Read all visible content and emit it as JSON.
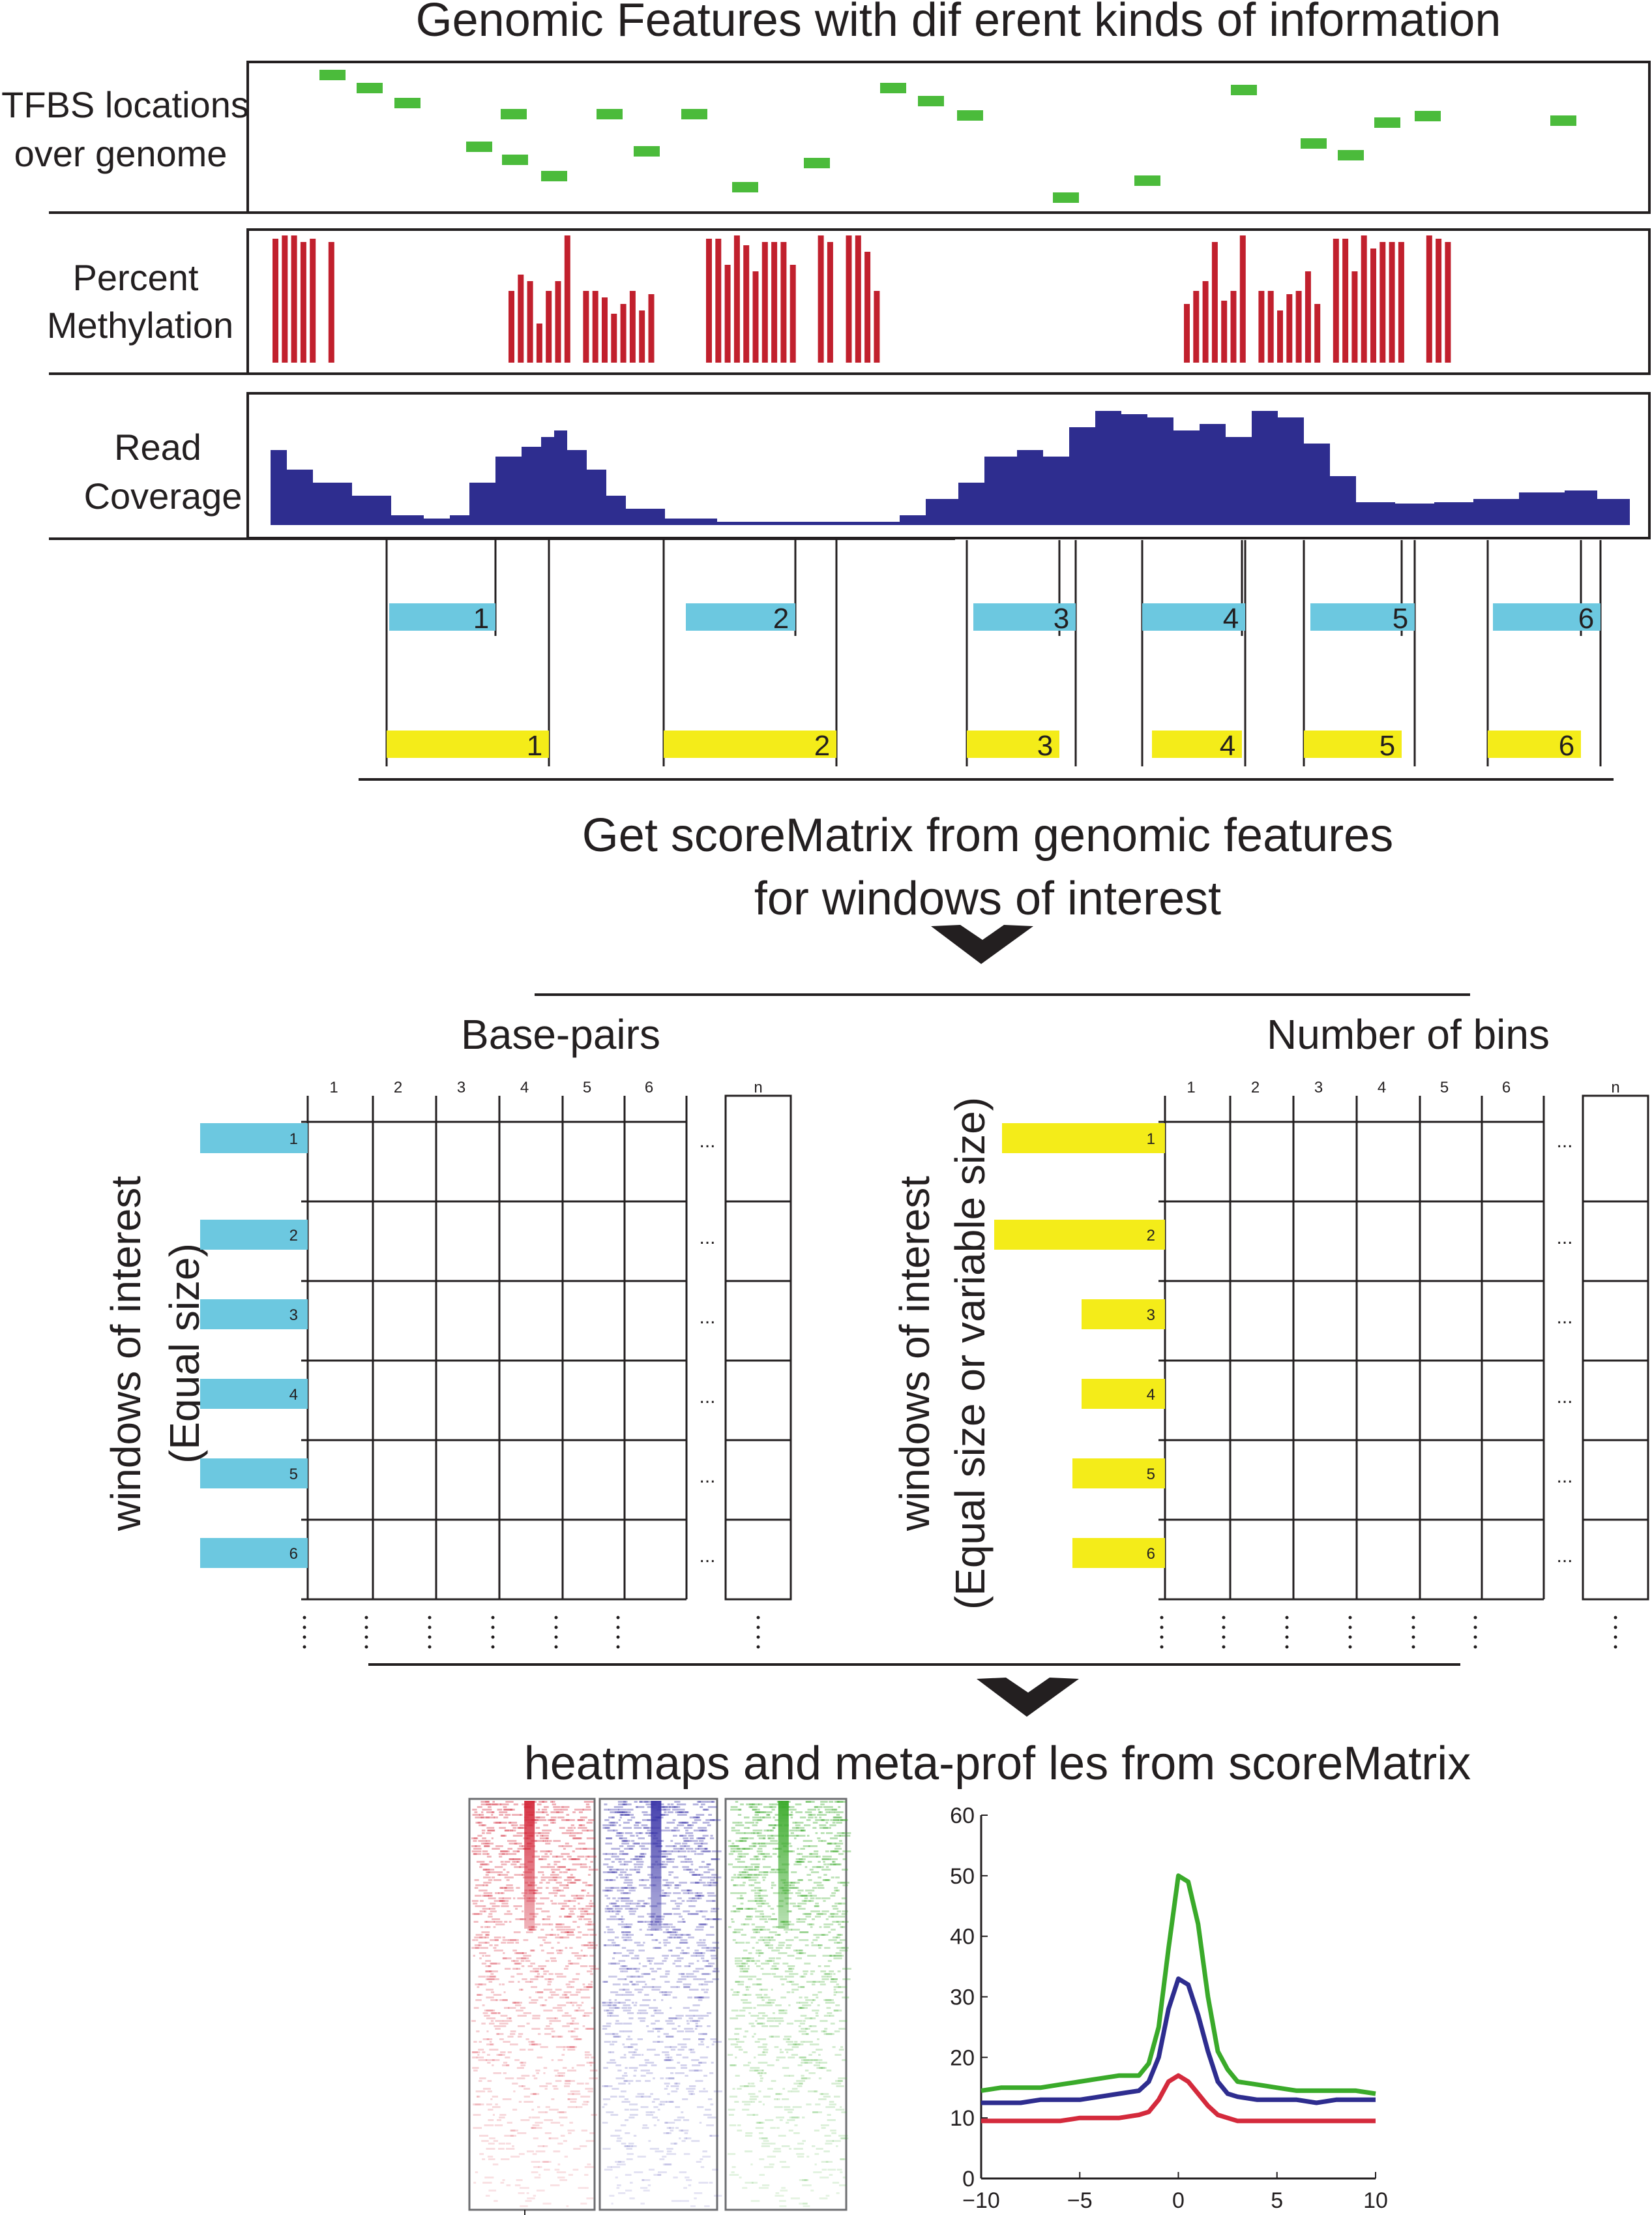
{
  "title": "Genomic Features with dif erent kinds of information",
  "tracks": {
    "tfbs": {
      "label_line1": "TFBS locations",
      "label_line2": "over genome",
      "color": "#4bbb3b"
    },
    "methylation": {
      "label_line1": "Percent",
      "label_line2": "Methylation",
      "color": "#c1202d"
    },
    "coverage": {
      "label_line1": "Read",
      "label_line2": "Coverage",
      "color": "#2e2d8f"
    }
  },
  "windows": {
    "equal_color": "#6cc8e0",
    "variable_color": "#f4ec19",
    "labels": [
      "1",
      "2",
      "3",
      "4",
      "5",
      "6"
    ]
  },
  "step1_text_line1": "Get scoreMatrix from genomic features",
  "step1_text_line2": "for windows of interest",
  "matrix_left": {
    "title": "Base-pairs",
    "ylabel_line1": "windows of interest",
    "ylabel_line2": "(Equal size)",
    "columns": [
      "1",
      "2",
      "3",
      "4",
      "5",
      "6"
    ],
    "last_column": "n",
    "rows": [
      "1",
      "2",
      "3",
      "4",
      "5",
      "6"
    ],
    "ellipsis": "..."
  },
  "matrix_right": {
    "title": "Number of bins",
    "ylabel_line1": "windows of interest",
    "ylabel_line2": "(Equal size or variable size)",
    "columns": [
      "1",
      "2",
      "3",
      "4",
      "5",
      "6"
    ],
    "last_column": "n",
    "rows": [
      "1",
      "2",
      "3",
      "4",
      "5",
      "6"
    ],
    "ellipsis": "..."
  },
  "step2_text": "heatmaps and meta-prof les from scoreMatrix",
  "heatmaps": [
    {
      "color": "#d42a3c"
    },
    {
      "color": "#3a35a8"
    },
    {
      "color": "#3aaa2a"
    }
  ],
  "chart_data": {
    "type": "line",
    "xlim": [
      -10,
      10
    ],
    "ylim": [
      0,
      60
    ],
    "xticks": [
      "−10",
      "−5",
      "0",
      "5",
      "10"
    ],
    "yticks": [
      "0",
      "10",
      "20",
      "30",
      "40",
      "50",
      "60"
    ],
    "xtick_values": [
      -10,
      -5,
      0,
      5,
      10
    ],
    "ytick_values": [
      0,
      10,
      20,
      30,
      40,
      50,
      60
    ],
    "x": [
      -10,
      -9,
      -8,
      -7,
      -6,
      -5,
      -4,
      -3,
      -2,
      -1.5,
      -1,
      -0.5,
      0,
      0.5,
      1,
      1.5,
      2,
      2.5,
      3,
      4,
      5,
      6,
      7,
      8,
      9,
      10
    ],
    "series": [
      {
        "color": "#3aaa2a",
        "values": [
          14.5,
          15,
          15,
          15,
          15.5,
          16,
          16.5,
          17,
          17,
          19,
          25,
          38,
          50,
          49,
          42,
          30,
          21,
          18,
          16,
          15.5,
          15,
          14.5,
          14.5,
          14.5,
          14.5,
          14
        ]
      },
      {
        "color": "#2e2d8f",
        "values": [
          12.5,
          12.5,
          12.5,
          13,
          13,
          13,
          13.5,
          14,
          14.5,
          16,
          20,
          28,
          33,
          32,
          27,
          21,
          16,
          14,
          13.5,
          13,
          13,
          13,
          12.5,
          13,
          13,
          13
        ]
      },
      {
        "color": "#d42a3c",
        "values": [
          9.5,
          9.5,
          9.5,
          9.5,
          9.5,
          10,
          10,
          10,
          10.5,
          11,
          13,
          16,
          17,
          16,
          14,
          12,
          10.5,
          10,
          9.5,
          9.5,
          9.5,
          9.5,
          9.5,
          9.5,
          9.5,
          9.5
        ]
      }
    ]
  }
}
